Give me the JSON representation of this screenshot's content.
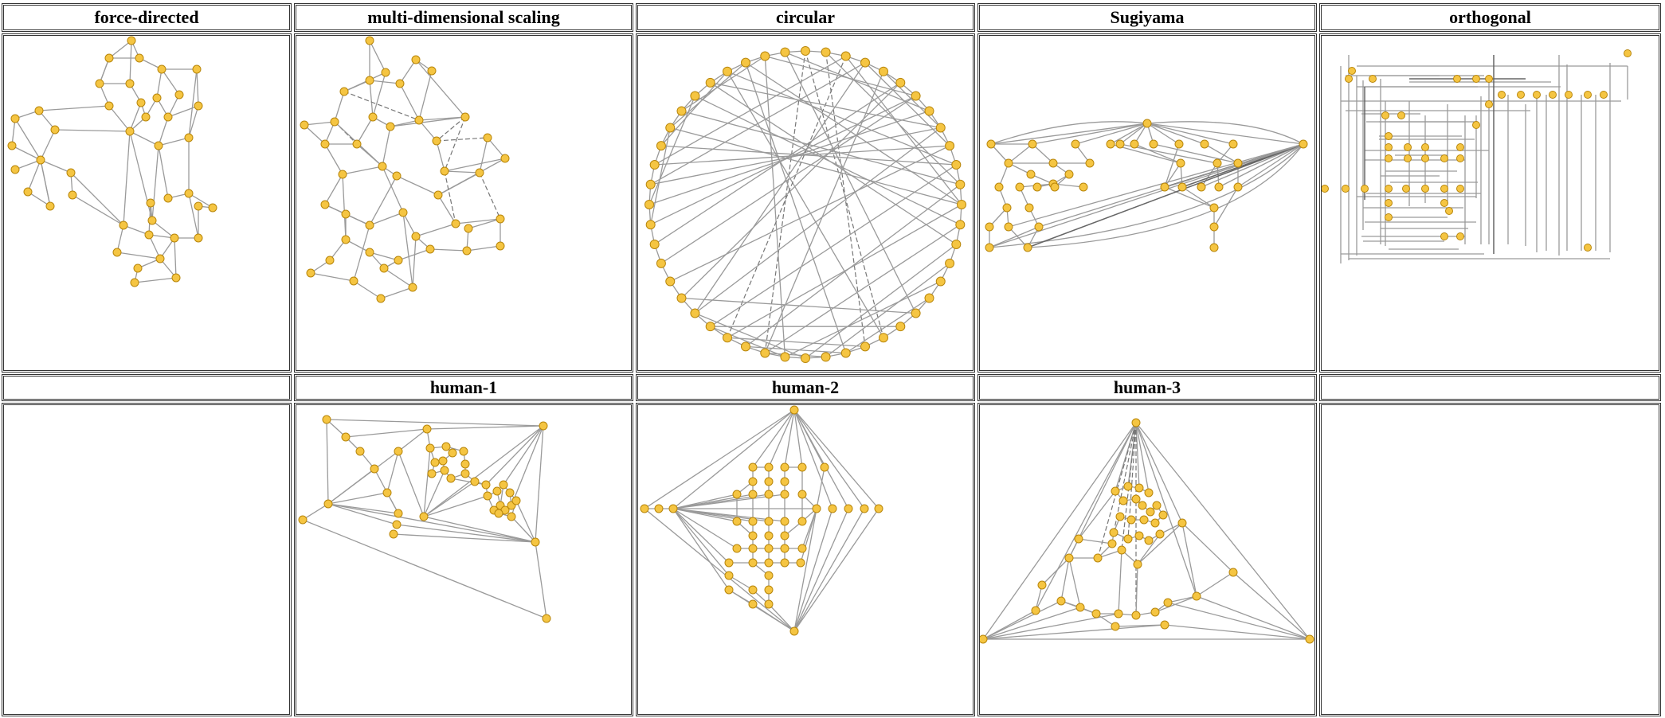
{
  "node_color": "#f5c542",
  "node_stroke": "#b8860b",
  "edge_color": "#9a9a9a",
  "panels": [
    {
      "title": "force-directed"
    },
    {
      "title": "multi-dimensional scaling"
    },
    {
      "title": "circular"
    },
    {
      "title": "Sugiyama"
    },
    {
      "title": "orthogonal"
    },
    {
      "title": ""
    },
    {
      "title": "human-1"
    },
    {
      "title": "human-2"
    },
    {
      "title": "human-3"
    },
    {
      "title": ""
    }
  ]
}
